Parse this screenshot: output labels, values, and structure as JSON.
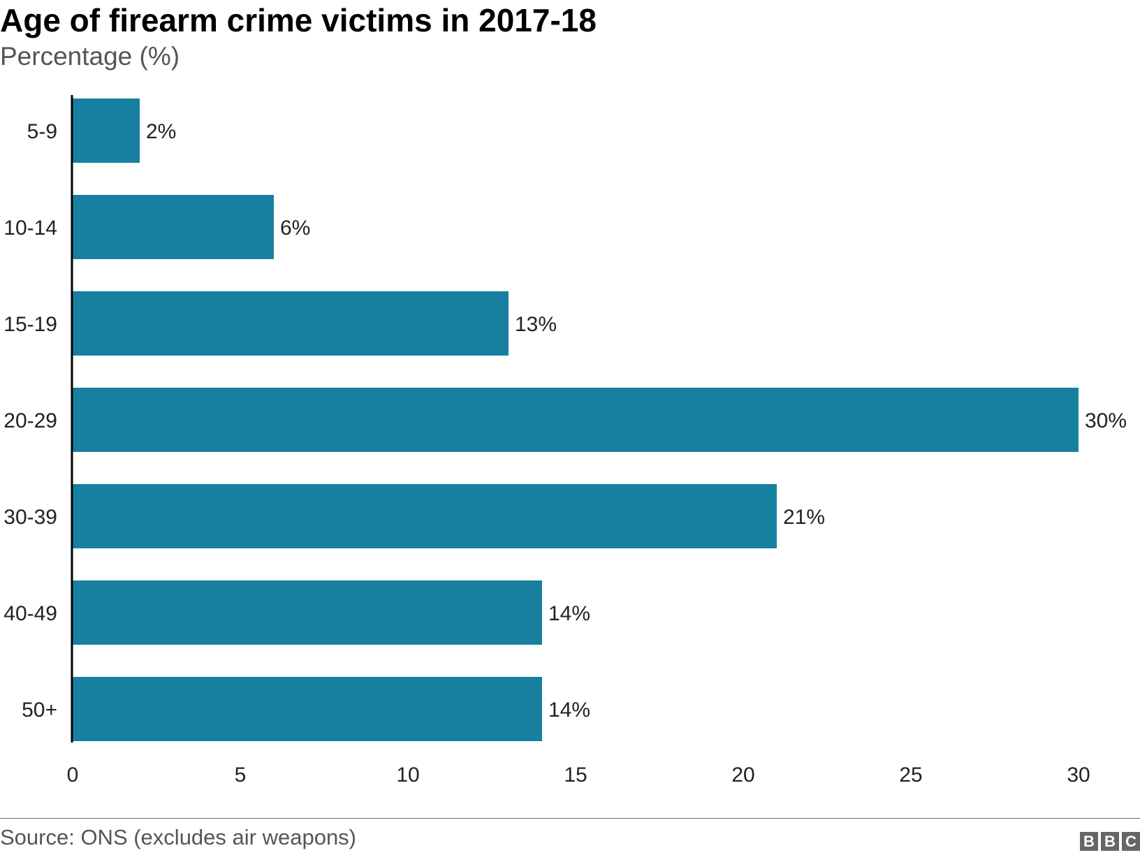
{
  "bar_color": "#1780a1",
  "chart_data": {
    "type": "bar",
    "orientation": "horizontal",
    "title": "Age of firearm crime victims in 2017-18",
    "subtitle": "Percentage (%)",
    "categories": [
      "5-9",
      "10-14",
      "15-19",
      "20-29",
      "30-39",
      "40-49",
      "50+"
    ],
    "values": [
      2,
      6,
      13,
      30,
      21,
      14,
      14
    ],
    "data_labels": [
      "2%",
      "6%",
      "13%",
      "30%",
      "21%",
      "14%",
      "14%"
    ],
    "xlim": [
      0,
      30
    ],
    "xticks": [
      "0",
      "5",
      "10",
      "15",
      "20",
      "25",
      "30"
    ],
    "xlabel": "",
    "ylabel": "",
    "grid": false,
    "legend": "none"
  },
  "footer": {
    "source": "Source: ONS (excludes air weapons)",
    "logo_letters": [
      "B",
      "B",
      "C"
    ]
  }
}
